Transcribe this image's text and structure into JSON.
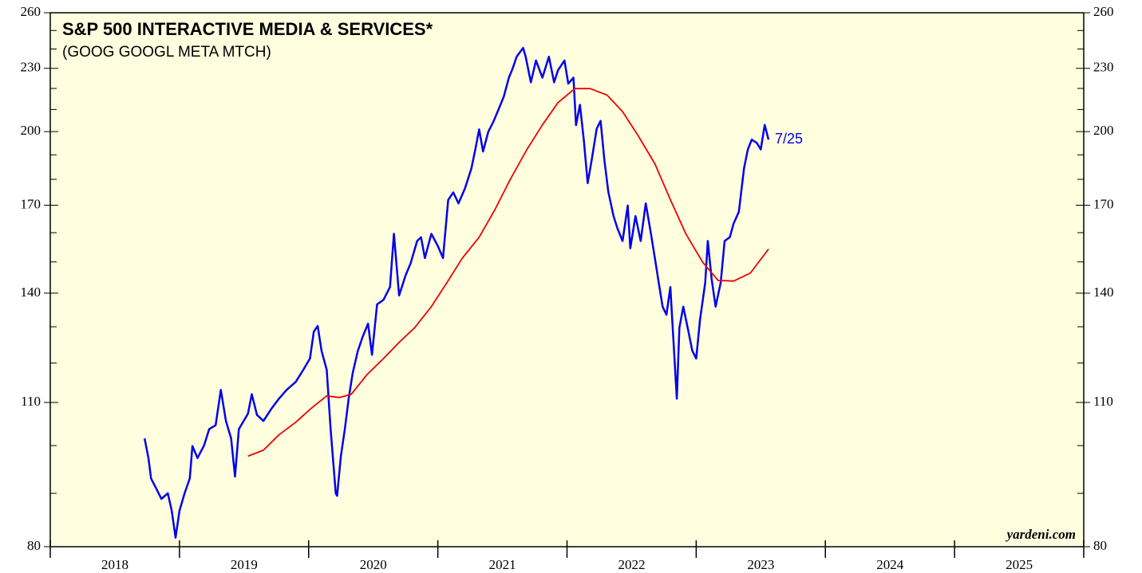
{
  "chart_data": {
    "type": "line",
    "title": "S&P 500 INTERACTIVE MEDIA & SERVICES*",
    "subtitle": "(GOOG GOOGL META MTCH)",
    "source": "yardeni.com",
    "end_label": "7/25",
    "log_y": true,
    "xlim": [
      2018,
      2026
    ],
    "xticks": [
      2018,
      2019,
      2020,
      2021,
      2022,
      2023,
      2024,
      2025,
      2026
    ],
    "ylim": [
      80,
      260
    ],
    "yticks": [
      80,
      110,
      140,
      170,
      200,
      230,
      260
    ],
    "yminor": [
      90,
      100,
      120,
      130,
      150,
      160,
      180,
      190,
      210,
      220,
      240,
      250
    ],
    "series": [
      {
        "color": "#0000ee",
        "x": [
          2018.73,
          2018.76,
          2018.78,
          2018.82,
          2018.86,
          2018.91,
          2018.94,
          2018.97,
          2019.0,
          2019.04,
          2019.08,
          2019.1,
          2019.14,
          2019.19,
          2019.23,
          2019.28,
          2019.32,
          2019.36,
          2019.4,
          2019.43,
          2019.46,
          2019.53,
          2019.56,
          2019.6,
          2019.65,
          2019.71,
          2019.77,
          2019.83,
          2019.9,
          2019.96,
          2020.01,
          2020.04,
          2020.07,
          2020.1,
          2020.14,
          2020.17,
          2020.21,
          2020.22,
          2020.25,
          2020.28,
          2020.31,
          2020.34,
          2020.38,
          2020.42,
          2020.46,
          2020.49,
          2020.53,
          2020.58,
          2020.63,
          2020.66,
          2020.7,
          2020.75,
          2020.79,
          2020.84,
          2020.87,
          2020.9,
          2020.95,
          2021.0,
          2021.04,
          2021.08,
          2021.12,
          2021.16,
          2021.21,
          2021.26,
          2021.29,
          2021.32,
          2021.35,
          2021.39,
          2021.43,
          2021.47,
          2021.51,
          2021.55,
          2021.58,
          2021.61,
          2021.66,
          2021.68,
          2021.72,
          2021.76,
          2021.81,
          2021.86,
          2021.9,
          2021.93,
          2021.98,
          2022.01,
          2022.05,
          2022.07,
          2022.1,
          2022.13,
          2022.16,
          2022.19,
          2022.23,
          2022.26,
          2022.29,
          2022.32,
          2022.36,
          2022.39,
          2022.43,
          2022.47,
          2022.49,
          2022.53,
          2022.57,
          2022.61,
          2022.65,
          2022.68,
          2022.71,
          2022.74,
          2022.77,
          2022.8,
          2022.83,
          2022.85,
          2022.87,
          2022.9,
          2022.94,
          2022.97,
          2023.0,
          2023.03,
          2023.07,
          2023.09,
          2023.12,
          2023.15,
          2023.19,
          2023.22,
          2023.26,
          2023.29,
          2023.33,
          2023.37,
          2023.4,
          2023.43,
          2023.47,
          2023.5,
          2023.53,
          2023.56
        ],
        "values": [
          101.6,
          97.3,
          93,
          91,
          88.9,
          90,
          86.6,
          81.6,
          86.6,
          90,
          93,
          99.9,
          97.3,
          100,
          103.7,
          104.6,
          113.1,
          105.6,
          101.6,
          93.4,
          103.7,
          107.3,
          112,
          107,
          105.6,
          108.4,
          110.9,
          113.1,
          115.1,
          118.3,
          121.2,
          128.6,
          130.2,
          123.3,
          118.2,
          103.7,
          90,
          89.5,
          97.8,
          103.7,
          110.9,
          117.2,
          123.2,
          127.3,
          130.9,
          122.2,
          136.6,
          138,
          141.9,
          159.6,
          139.3,
          145.6,
          149.6,
          157.1,
          158.4,
          151.3,
          159.6,
          155.4,
          151.3,
          172,
          174.9,
          170.7,
          176.4,
          184.4,
          192.3,
          201,
          191.4,
          199.9,
          204.4,
          210,
          216,
          225.3,
          230,
          236,
          240.6,
          236,
          223,
          234,
          225.3,
          236,
          223,
          229,
          234,
          222.3,
          225.3,
          202.9,
          212.2,
          196.5,
          178.5,
          187.6,
          201.3,
          204.8,
          187.6,
          175,
          166,
          161.6,
          157.1,
          169.9,
          154.6,
          166,
          157.1,
          170.7,
          159.6,
          151.3,
          143.3,
          135.9,
          133.5,
          141.9,
          122.2,
          110.9,
          129.7,
          135.9,
          128.6,
          123.3,
          121.2,
          132.1,
          143.3,
          157.1,
          144.3,
          135.9,
          143.3,
          157.1,
          158.4,
          163.3,
          167.5,
          184.4,
          192.3,
          196.5,
          195,
          192.3,
          203,
          196.5
        ]
      },
      {
        "color": "#ee0000",
        "x": [
          2019.53,
          2019.65,
          2019.77,
          2019.9,
          2020.02,
          2020.14,
          2020.24,
          2020.33,
          2020.45,
          2020.58,
          2020.7,
          2020.82,
          2020.95,
          2021.07,
          2021.19,
          2021.32,
          2021.44,
          2021.56,
          2021.69,
          2021.81,
          2021.93,
          2022.06,
          2022.18,
          2022.31,
          2022.43,
          2022.55,
          2022.68,
          2022.8,
          2022.92,
          2023.05,
          2023.17,
          2023.29,
          2023.42,
          2023.56
        ],
        "values": [
          97.7,
          99,
          102.4,
          105.3,
          108.6,
          111.6,
          111.2,
          112,
          116.9,
          121.2,
          125.6,
          129.7,
          135.9,
          143.3,
          151.3,
          158.4,
          168.2,
          179.9,
          192.3,
          203,
          213.2,
          219.9,
          219.9,
          216.8,
          209,
          198.3,
          186.3,
          172.1,
          159.6,
          149.9,
          144,
          143.8,
          146.4,
          154.3
        ]
      }
    ]
  }
}
